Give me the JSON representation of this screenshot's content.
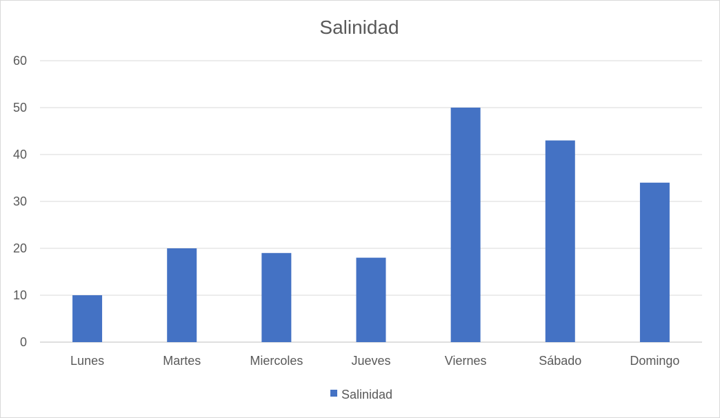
{
  "chart_data": {
    "type": "bar",
    "title": "Salinidad",
    "xlabel": "",
    "ylabel": "",
    "categories": [
      "Lunes",
      "Martes",
      "Miercoles",
      "Jueves",
      "Viernes",
      "Sábado",
      "Domingo"
    ],
    "series": [
      {
        "name": "Salinidad",
        "values": [
          10,
          20,
          19,
          18,
          50,
          43,
          34
        ],
        "color": "#4472c4"
      }
    ],
    "ylim": [
      0,
      60
    ],
    "yticks": [
      0,
      10,
      20,
      30,
      40,
      50,
      60
    ],
    "grid": true,
    "legend_position": "bottom"
  }
}
